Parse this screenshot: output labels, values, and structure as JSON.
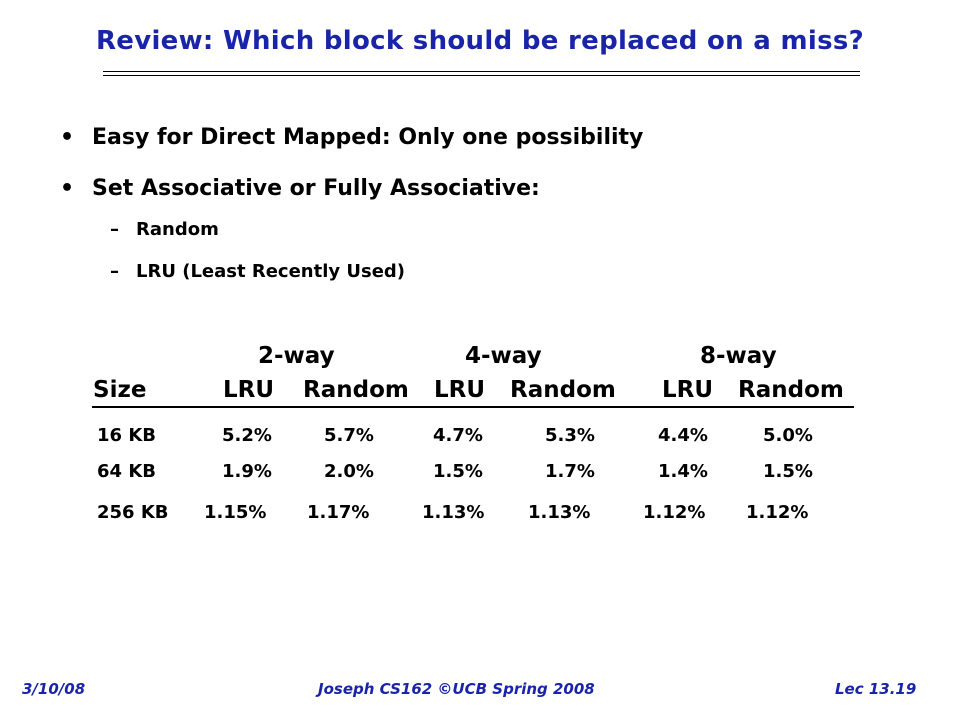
{
  "title": "Review: Which block should be replaced on a miss?",
  "bullets": [
    "Easy for Direct Mapped: Only one possibility",
    "Set Associative or Fully Associative:"
  ],
  "sub_bullets": [
    "Random",
    "LRU (Least Recently Used)"
  ],
  "bullet_glyph": "•",
  "dash_glyph": "–",
  "table": {
    "group_headers": [
      "2-way",
      "4-way",
      "8-way"
    ],
    "column_headers": [
      "Size",
      "LRU",
      "Random",
      "LRU",
      "Random",
      "LRU",
      "Random"
    ],
    "rows": [
      [
        "16 KB",
        "5.2%",
        "5.7%",
        "4.7%",
        "5.3%",
        "4.4%",
        "5.0%"
      ],
      [
        "64 KB",
        "1.9%",
        "2.0%",
        "1.5%",
        "1.7%",
        "1.4%",
        "1.5%"
      ],
      [
        "256 KB",
        "1.15%",
        "1.17%",
        "1.13%",
        "1.13%",
        "1.12%",
        "1.12%"
      ]
    ]
  },
  "footer": {
    "left": "3/10/08",
    "center": "Joseph CS162 ©UCB Spring 2008",
    "right": "Lec 13.19"
  },
  "colors": {
    "title": "#1a24a8",
    "footer": "#1a24a8",
    "text": "#000000"
  }
}
